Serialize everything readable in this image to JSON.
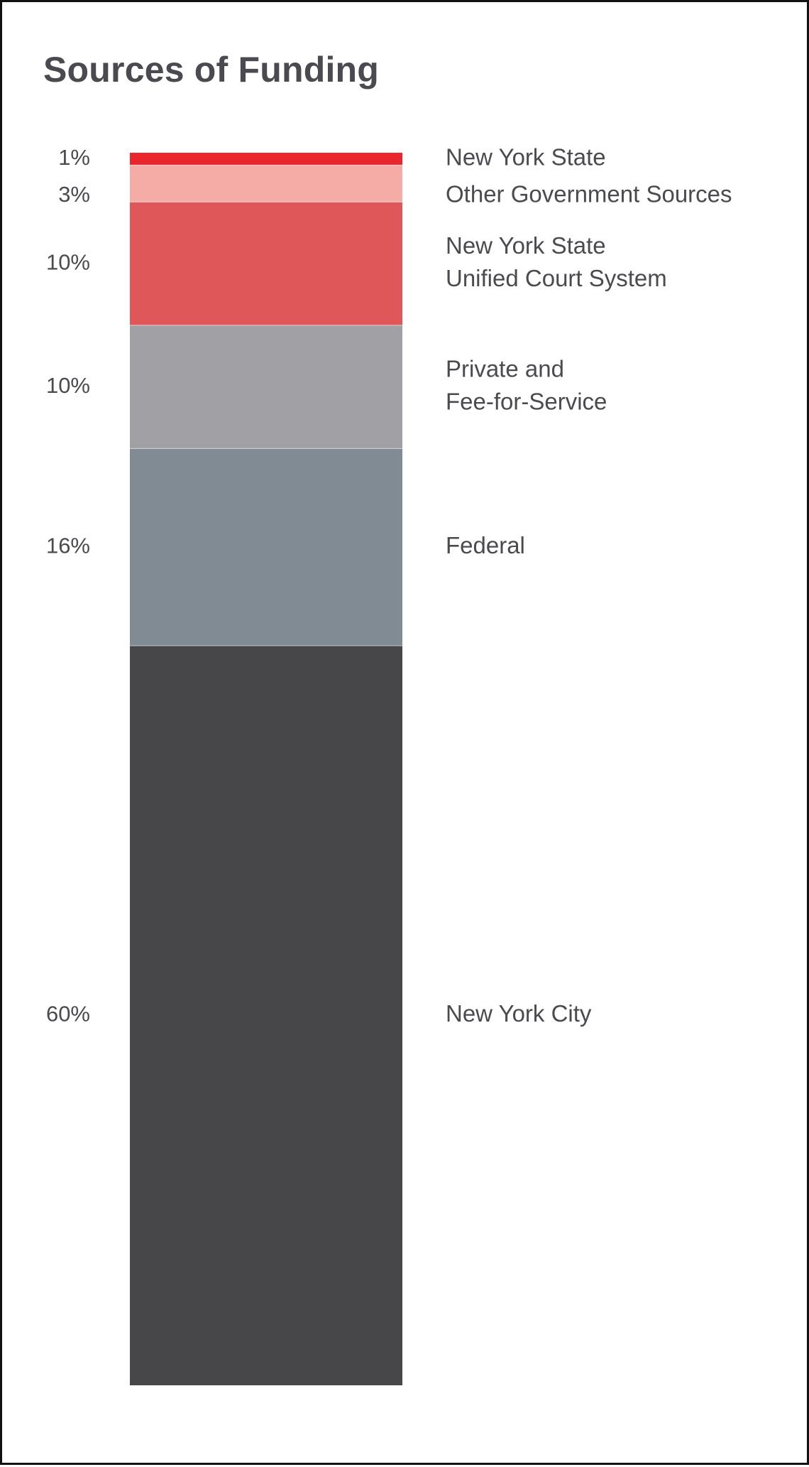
{
  "chart_data": {
    "type": "bar",
    "stacked": true,
    "orientation": "vertical",
    "title": "Sources of Funding",
    "xlabel": "",
    "ylabel": "",
    "grid": false,
    "legend": "none",
    "unit": "%",
    "segments": [
      {
        "category": "New York State",
        "label_lines": [
          "New York State"
        ],
        "value": 1,
        "value_label": "1%",
        "color": "#e8262b"
      },
      {
        "category": "Other Government Sources",
        "label_lines": [
          "Other Government Sources"
        ],
        "value": 3,
        "value_label": "3%",
        "color": "#f5aca6"
      },
      {
        "category": "New York State Unified Court System",
        "label_lines": [
          "New York State",
          "Unified Court System"
        ],
        "value": 10,
        "value_label": "10%",
        "color": "#e0575a"
      },
      {
        "category": "Private and Fee-for-Service",
        "label_lines": [
          "Private and",
          "Fee-for-Service"
        ],
        "value": 10,
        "value_label": "10%",
        "color": "#a0a0a5"
      },
      {
        "category": "Federal",
        "label_lines": [
          "Federal"
        ],
        "value": 16,
        "value_label": "16%",
        "color": "#818b93"
      },
      {
        "category": "New York City",
        "label_lines": [
          "New York City"
        ],
        "value": 60,
        "value_label": "60%",
        "color": "#474749"
      }
    ]
  }
}
